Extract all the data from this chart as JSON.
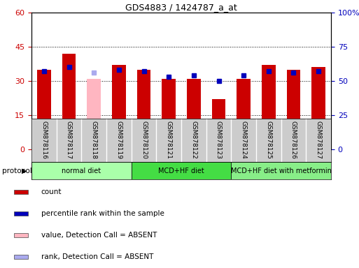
{
  "title": "GDS4883 / 1424787_a_at",
  "samples": [
    "GSM878116",
    "GSM878117",
    "GSM878118",
    "GSM878119",
    "GSM878120",
    "GSM878121",
    "GSM878122",
    "GSM878123",
    "GSM878124",
    "GSM878125",
    "GSM878126",
    "GSM878127"
  ],
  "count_values": [
    35,
    42,
    0,
    37,
    35,
    31,
    31,
    22,
    31,
    37,
    35,
    36
  ],
  "absent_value_bar": [
    0,
    0,
    31,
    0,
    0,
    0,
    0,
    0,
    0,
    0,
    0,
    0
  ],
  "percentile_values": [
    57,
    60,
    0,
    58,
    57,
    53,
    54,
    50,
    54,
    57,
    56,
    57
  ],
  "absent_rank_values": [
    0,
    0,
    56,
    0,
    0,
    0,
    0,
    0,
    0,
    0,
    0,
    0
  ],
  "absent_indices": [
    2
  ],
  "ylim_left": [
    0,
    60
  ],
  "ylim_right": [
    0,
    100
  ],
  "yticks_left": [
    0,
    15,
    30,
    45,
    60
  ],
  "yticks_right": [
    0,
    25,
    50,
    75,
    100
  ],
  "ytick_labels_left": [
    "0",
    "15",
    "30",
    "45",
    "60"
  ],
  "ytick_labels_right": [
    "0",
    "25",
    "50",
    "75",
    "100%"
  ],
  "protocol_groups": [
    {
      "label": "normal diet",
      "start": 0,
      "end": 3,
      "color": "#98FB98"
    },
    {
      "label": "MCD+HF diet",
      "start": 4,
      "end": 7,
      "color": "#44DD44"
    },
    {
      "label": "MCD+HF diet with metformin",
      "start": 8,
      "end": 11,
      "color": "#88EE88"
    }
  ],
  "bar_color_red": "#CC0000",
  "bar_color_pink": "#FFB6C1",
  "dot_color_blue": "#0000BB",
  "dot_color_lightblue": "#AAAAEE",
  "bar_width": 0.55,
  "legend_items": [
    {
      "label": "count",
      "color": "#CC0000"
    },
    {
      "label": "percentile rank within the sample",
      "color": "#0000BB"
    },
    {
      "label": "value, Detection Call = ABSENT",
      "color": "#FFB6C1"
    },
    {
      "label": "rank, Detection Call = ABSENT",
      "color": "#AAAAEE"
    }
  ],
  "tick_label_color_left": "#CC0000",
  "tick_label_color_right": "#0000BB",
  "sample_box_color": "#CCCCCC",
  "protocol_label": "protocol"
}
